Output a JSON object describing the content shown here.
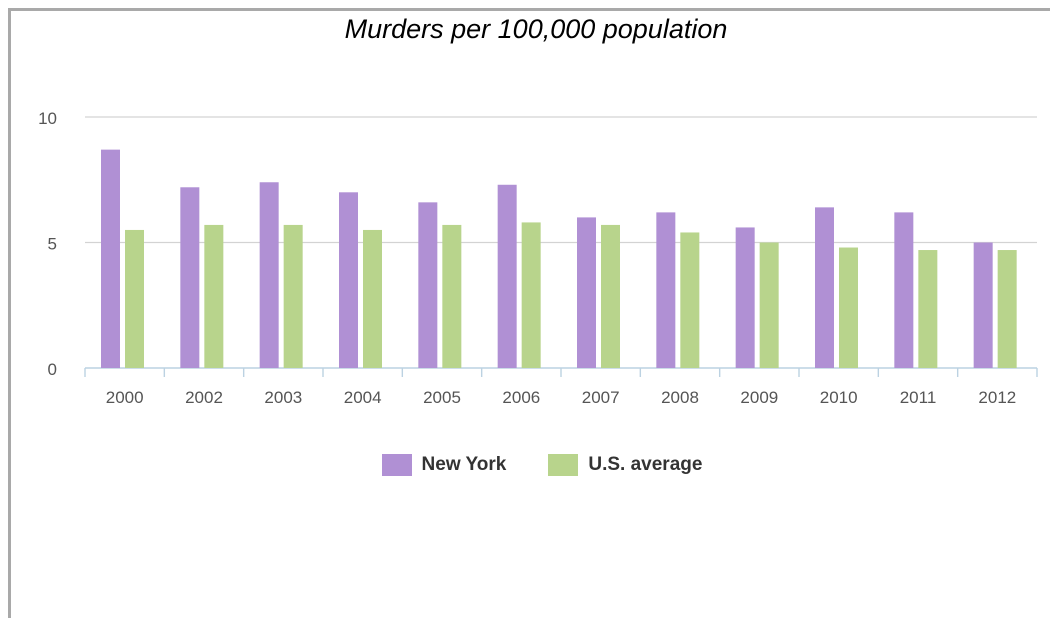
{
  "chart_data": {
    "type": "bar",
    "title": "Murders per 100,000 population",
    "categories": [
      "2000",
      "2002",
      "2003",
      "2004",
      "2005",
      "2006",
      "2007",
      "2008",
      "2009",
      "2010",
      "2011",
      "2012"
    ],
    "series": [
      {
        "name": "New York",
        "color": "#b090d4",
        "values": [
          8.7,
          7.2,
          7.4,
          7.0,
          6.6,
          7.3,
          6.0,
          6.2,
          5.6,
          6.4,
          6.2,
          5.0
        ]
      },
      {
        "name": "U.S. average",
        "color": "#b8d48c",
        "values": [
          5.5,
          5.7,
          5.7,
          5.5,
          5.7,
          5.8,
          5.7,
          5.4,
          5.0,
          4.8,
          4.7,
          4.7
        ]
      }
    ],
    "yticks": [
      "0",
      "5",
      "10"
    ],
    "ylim": [
      0,
      10
    ],
    "grid": true,
    "legend_position": "bottom"
  }
}
